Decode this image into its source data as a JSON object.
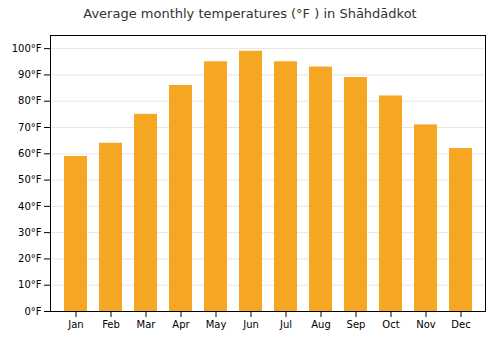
{
  "chart_data": {
    "type": "bar",
    "title": "Average monthly temperatures (°F ) in Shāhdādkot",
    "categories": [
      "Jan",
      "Feb",
      "Mar",
      "Apr",
      "May",
      "Jun",
      "Jul",
      "Aug",
      "Sep",
      "Oct",
      "Nov",
      "Dec"
    ],
    "values": [
      59,
      64,
      75,
      86,
      95,
      99,
      95,
      93,
      89,
      82,
      71,
      62
    ],
    "color": "#F5A623",
    "ylim": [
      0,
      105
    ],
    "yticks": [
      {
        "value": 0,
        "label": "0°F"
      },
      {
        "value": 10,
        "label": "10°F"
      },
      {
        "value": 20,
        "label": "20°F"
      },
      {
        "value": 30,
        "label": "30°F"
      },
      {
        "value": 40,
        "label": "40°F"
      },
      {
        "value": 50,
        "label": "50°F"
      },
      {
        "value": 60,
        "label": "60°F"
      },
      {
        "value": 70,
        "label": "70°F"
      },
      {
        "value": 80,
        "label": "80°F"
      },
      {
        "value": 90,
        "label": "90°F"
      },
      {
        "value": 100,
        "label": "100°F"
      }
    ],
    "grid": true
  }
}
